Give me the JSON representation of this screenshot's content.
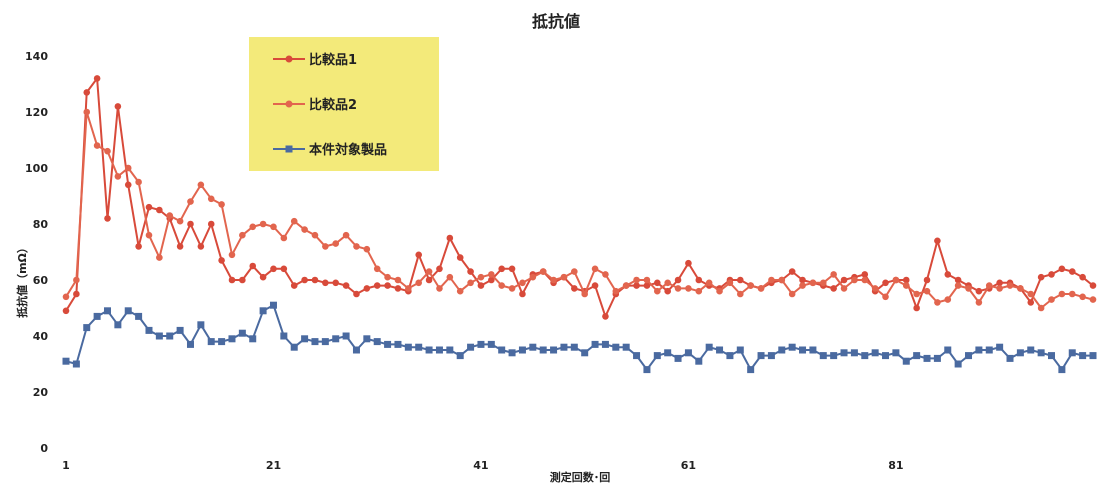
{
  "chart_data": {
    "type": "line",
    "title": "抵抗値",
    "xlabel": "測定回数･回",
    "ylabel": "抵抗値（mΩ）",
    "xlim": [
      1,
      100
    ],
    "ylim": [
      0,
      140
    ],
    "xticks": [
      1,
      21,
      41,
      61,
      81
    ],
    "yticks": [
      0,
      20,
      40,
      60,
      80,
      100,
      120,
      140
    ],
    "grid": false,
    "legend_position": "top-left",
    "legend_fill": "#f3ea7a",
    "series": [
      {
        "name": "比較品1",
        "color": "#d84a3a",
        "marker": "circle",
        "values": [
          49,
          55,
          127,
          132,
          82,
          122,
          94,
          72,
          86,
          85,
          82,
          72,
          80,
          72,
          80,
          67,
          60,
          60,
          65,
          61,
          64,
          64,
          58,
          60,
          60,
          59,
          59,
          58,
          55,
          57,
          58,
          58,
          57,
          56,
          69,
          60,
          64,
          75,
          68,
          63,
          58,
          60,
          64,
          64,
          55,
          62,
          63,
          59,
          61,
          57,
          56,
          58,
          47,
          55,
          58,
          58,
          58,
          59,
          56,
          60,
          66,
          60,
          58,
          57,
          60,
          60,
          58,
          57,
          59,
          60,
          63,
          60,
          59,
          58,
          57,
          60,
          61,
          62,
          56,
          59,
          60,
          60,
          50,
          60,
          74,
          62,
          60,
          58,
          56,
          57,
          59,
          59,
          57,
          52,
          61,
          62,
          64,
          63,
          61,
          58
        ]
      },
      {
        "name": "比較品2",
        "color": "#e2654e",
        "marker": "circle",
        "values": [
          54,
          60,
          120,
          108,
          106,
          97,
          100,
          95,
          76,
          68,
          83,
          81,
          88,
          94,
          89,
          87,
          69,
          76,
          79,
          80,
          79,
          75,
          81,
          78,
          76,
          72,
          73,
          76,
          72,
          71,
          64,
          61,
          60,
          57,
          59,
          63,
          57,
          61,
          56,
          59,
          61,
          62,
          58,
          57,
          59,
          61,
          63,
          60,
          61,
          63,
          55,
          64,
          62,
          56,
          58,
          60,
          60,
          56,
          59,
          57,
          57,
          56,
          59,
          56,
          59,
          55,
          58,
          57,
          60,
          60,
          55,
          58,
          59,
          59,
          62,
          57,
          60,
          60,
          57,
          54,
          60,
          58,
          55,
          56,
          52,
          53,
          58,
          57,
          52,
          58,
          57,
          58,
          57,
          55,
          50,
          53,
          55,
          55,
          54,
          53
        ]
      },
      {
        "name": "本件対象製品",
        "color": "#4a6aa0",
        "marker": "square",
        "values": [
          31,
          30,
          43,
          47,
          49,
          44,
          49,
          47,
          42,
          40,
          40,
          42,
          37,
          44,
          38,
          38,
          39,
          41,
          39,
          49,
          51,
          40,
          36,
          39,
          38,
          38,
          39,
          40,
          35,
          39,
          38,
          37,
          37,
          36,
          36,
          35,
          35,
          35,
          33,
          36,
          37,
          37,
          35,
          34,
          35,
          36,
          35,
          35,
          36,
          36,
          34,
          37,
          37,
          36,
          36,
          33,
          28,
          33,
          34,
          32,
          34,
          31,
          36,
          35,
          33,
          35,
          28,
          33,
          33,
          35,
          36,
          35,
          35,
          33,
          33,
          34,
          34,
          33,
          34,
          33,
          34,
          31,
          33,
          32,
          32,
          35,
          30,
          33,
          35,
          35,
          36,
          32,
          34,
          35,
          34,
          33,
          28,
          34,
          33,
          33
        ]
      }
    ]
  }
}
